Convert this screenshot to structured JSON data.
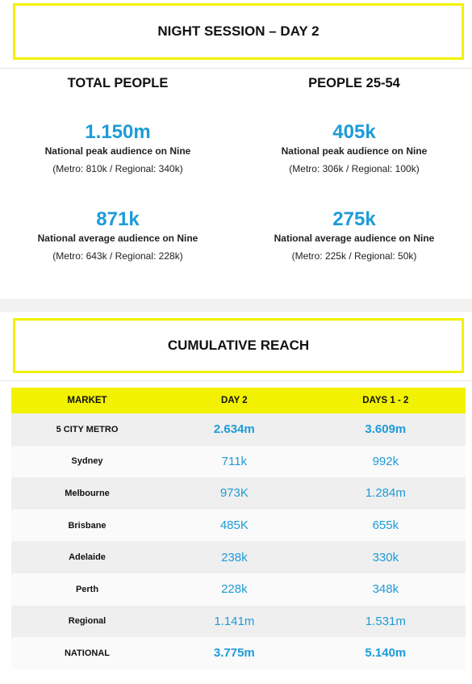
{
  "night_session": {
    "title": "NIGHT SESSION – DAY 2"
  },
  "total_people": {
    "heading": "TOTAL PEOPLE",
    "peak": {
      "value": "1.150m",
      "label": "National peak audience on Nine",
      "breakdown": "(Metro: 810k / Regional: 340k)"
    },
    "average": {
      "value": "871k",
      "label": "National average audience on Nine",
      "breakdown": "(Metro: 643k / Regional: 228k)"
    }
  },
  "people_25_54": {
    "heading": "PEOPLE 25-54",
    "peak": {
      "value": "405k",
      "label": "National peak audience on Nine",
      "breakdown": "(Metro: 306k / Regional: 100k)"
    },
    "average": {
      "value": "275k",
      "label": "National average audience on Nine",
      "breakdown": "(Metro: 225k / Regional: 50k)"
    }
  },
  "cumulative_reach": {
    "title": "CUMULATIVE REACH",
    "columns": [
      "MARKET",
      "DAY 2",
      "DAYS 1 - 2"
    ],
    "rows": [
      {
        "market": "5 CITY METRO",
        "day2": "2.634m",
        "days12": "3.609m",
        "emphasis": true
      },
      {
        "market": "Sydney",
        "day2": "711k",
        "days12": "992k",
        "emphasis": false
      },
      {
        "market": "Melbourne",
        "day2": "973K",
        "days12": "1.284m",
        "emphasis": false
      },
      {
        "market": "Brisbane",
        "day2": "485K",
        "days12": "655k",
        "emphasis": false
      },
      {
        "market": "Adelaide",
        "day2": "238k",
        "days12": "330k",
        "emphasis": false
      },
      {
        "market": "Perth",
        "day2": "228k",
        "days12": "348k",
        "emphasis": false
      },
      {
        "market": "Regional",
        "day2": "1.141m",
        "days12": "1.531m",
        "emphasis": false
      },
      {
        "market": "NATIONAL",
        "day2": "3.775m",
        "days12": "5.140m",
        "emphasis": true
      }
    ]
  },
  "colors": {
    "accent_yellow": "#f2f200",
    "value_blue": "#1e9bd7"
  }
}
